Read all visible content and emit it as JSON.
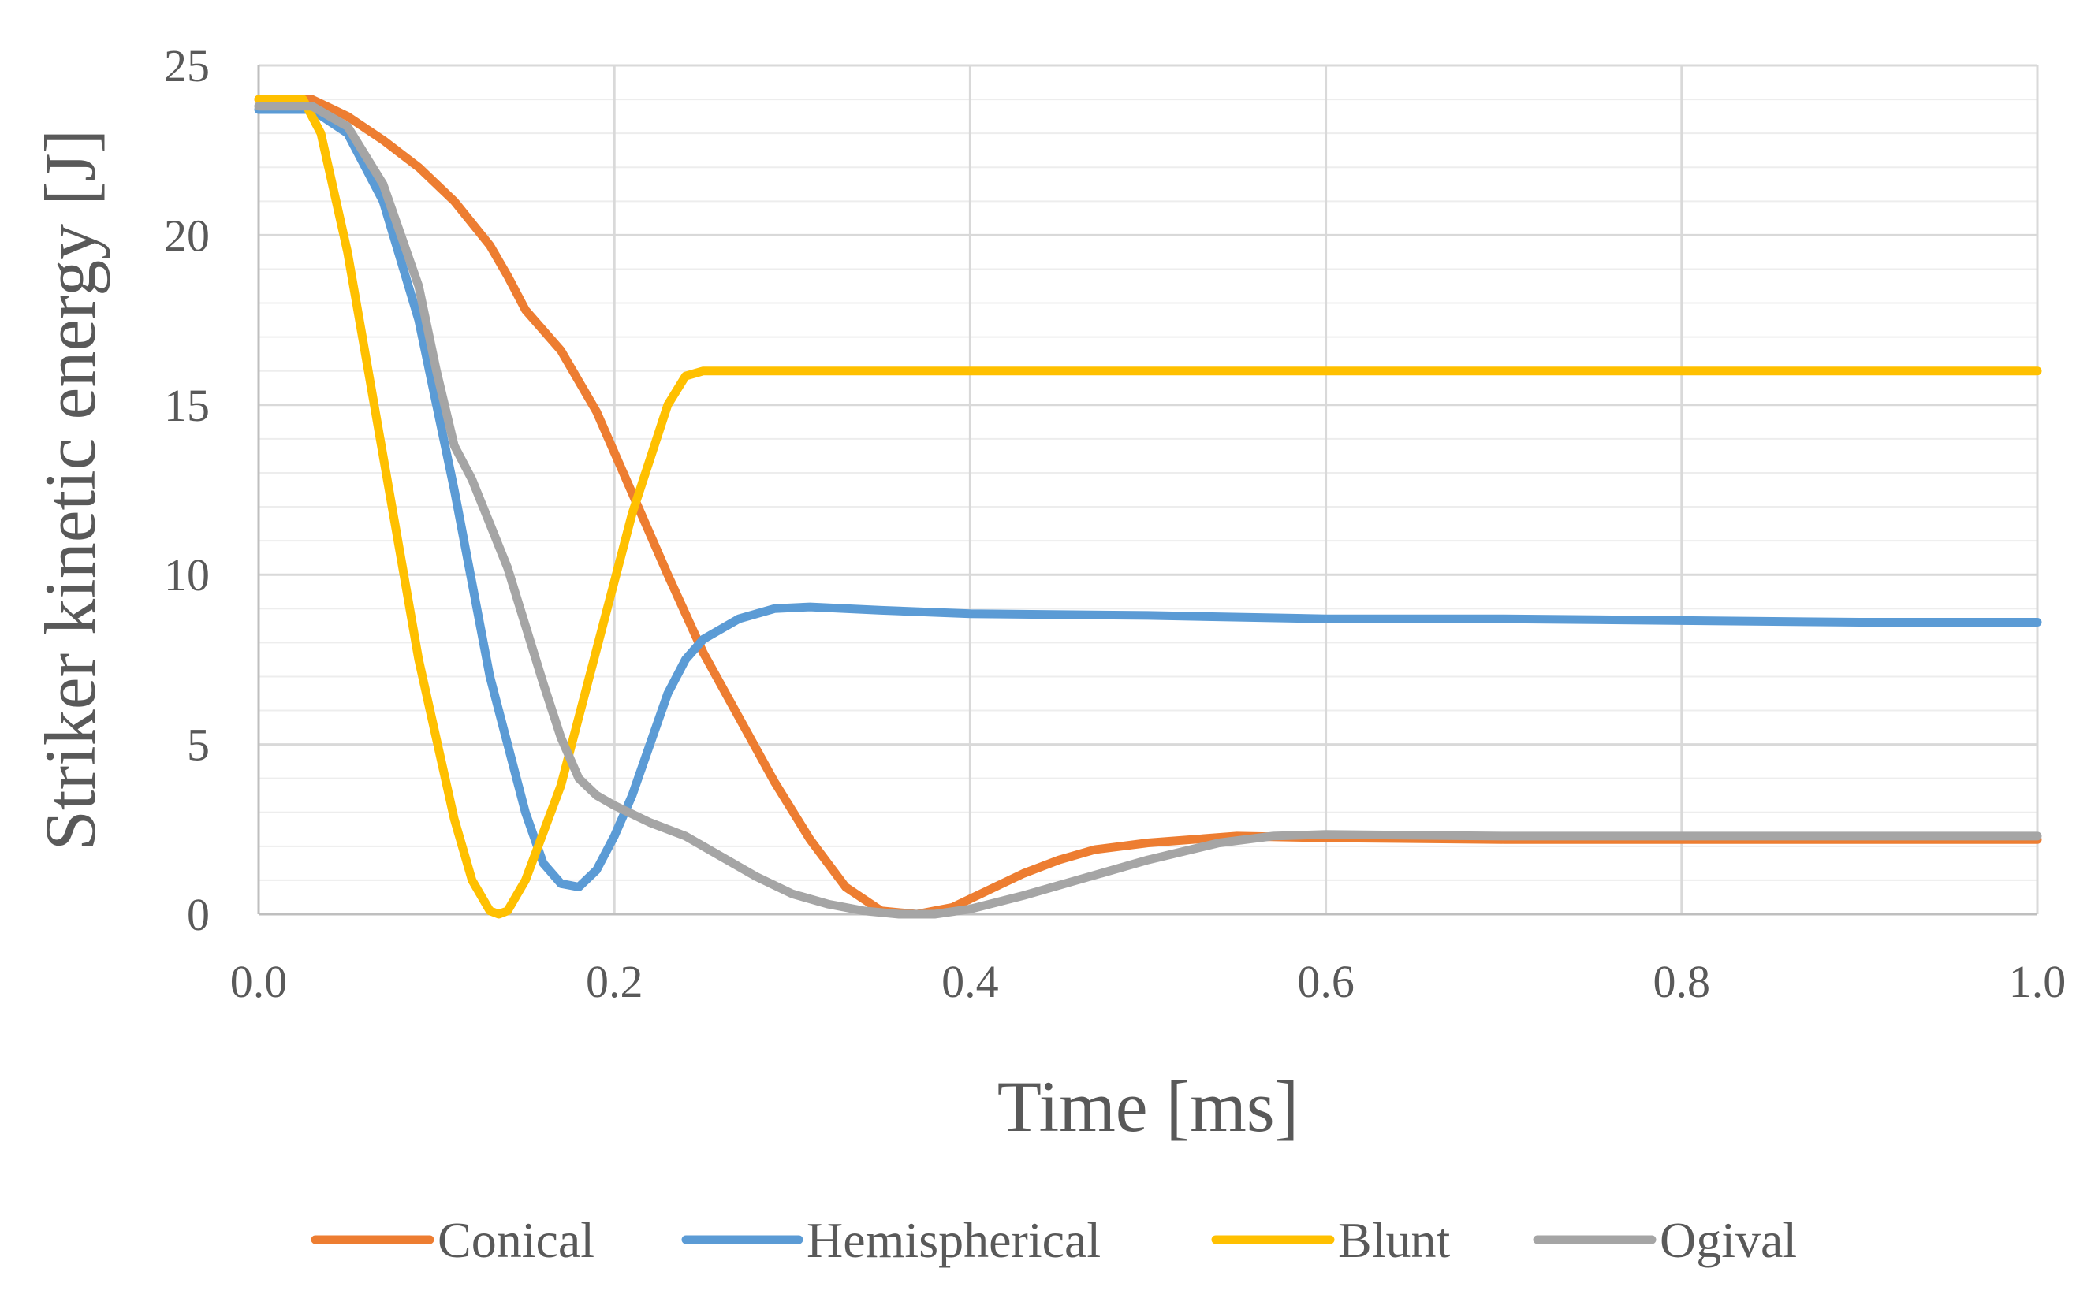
{
  "chart_data": {
    "type": "line",
    "title": "",
    "xlabel": "Time [ms]",
    "ylabel": "Striker kinetic energy [J]",
    "xlim": [
      0.0,
      1.0
    ],
    "ylim": [
      0,
      25
    ],
    "x_ticks": [
      "0.0",
      "0.2",
      "0.4",
      "0.6",
      "0.8",
      "1.0"
    ],
    "y_ticks": [
      "0",
      "5",
      "10",
      "15",
      "20",
      "25"
    ],
    "grid": true,
    "legend_position": "bottom",
    "series": [
      {
        "name": "Conical",
        "color": "#ED7D31",
        "points": [
          [
            0.0,
            24.0
          ],
          [
            0.03,
            24.0
          ],
          [
            0.05,
            23.5
          ],
          [
            0.07,
            22.8
          ],
          [
            0.09,
            22.0
          ],
          [
            0.11,
            21.0
          ],
          [
            0.13,
            19.7
          ],
          [
            0.14,
            18.8
          ],
          [
            0.15,
            17.8
          ],
          [
            0.17,
            16.6
          ],
          [
            0.19,
            14.8
          ],
          [
            0.21,
            12.4
          ],
          [
            0.23,
            10.0
          ],
          [
            0.25,
            7.7
          ],
          [
            0.27,
            5.8
          ],
          [
            0.29,
            3.9
          ],
          [
            0.31,
            2.2
          ],
          [
            0.33,
            0.8
          ],
          [
            0.35,
            0.1
          ],
          [
            0.37,
            0.0
          ],
          [
            0.39,
            0.2
          ],
          [
            0.41,
            0.7
          ],
          [
            0.43,
            1.2
          ],
          [
            0.45,
            1.6
          ],
          [
            0.47,
            1.9
          ],
          [
            0.5,
            2.1
          ],
          [
            0.55,
            2.3
          ],
          [
            0.6,
            2.25
          ],
          [
            0.7,
            2.2
          ],
          [
            0.8,
            2.2
          ],
          [
            0.9,
            2.2
          ],
          [
            1.0,
            2.2
          ]
        ]
      },
      {
        "name": "Hemispherical",
        "color": "#5B9BD5",
        "points": [
          [
            0.0,
            23.7
          ],
          [
            0.03,
            23.7
          ],
          [
            0.05,
            23.0
          ],
          [
            0.07,
            21.0
          ],
          [
            0.09,
            17.5
          ],
          [
            0.11,
            12.5
          ],
          [
            0.13,
            7.0
          ],
          [
            0.15,
            3.0
          ],
          [
            0.16,
            1.5
          ],
          [
            0.17,
            0.9
          ],
          [
            0.18,
            0.8
          ],
          [
            0.19,
            1.3
          ],
          [
            0.2,
            2.3
          ],
          [
            0.21,
            3.5
          ],
          [
            0.22,
            5.0
          ],
          [
            0.23,
            6.5
          ],
          [
            0.24,
            7.5
          ],
          [
            0.25,
            8.1
          ],
          [
            0.27,
            8.7
          ],
          [
            0.29,
            9.0
          ],
          [
            0.31,
            9.05
          ],
          [
            0.35,
            8.95
          ],
          [
            0.4,
            8.85
          ],
          [
            0.5,
            8.8
          ],
          [
            0.6,
            8.7
          ],
          [
            0.7,
            8.7
          ],
          [
            0.8,
            8.65
          ],
          [
            0.9,
            8.6
          ],
          [
            1.0,
            8.6
          ]
        ]
      },
      {
        "name": "Blunt",
        "color": "#FFC000",
        "points": [
          [
            0.0,
            24.0
          ],
          [
            0.025,
            24.0
          ],
          [
            0.035,
            23.0
          ],
          [
            0.05,
            19.5
          ],
          [
            0.07,
            13.5
          ],
          [
            0.09,
            7.5
          ],
          [
            0.11,
            2.8
          ],
          [
            0.12,
            1.0
          ],
          [
            0.13,
            0.1
          ],
          [
            0.135,
            0.0
          ],
          [
            0.14,
            0.1
          ],
          [
            0.15,
            1.0
          ],
          [
            0.17,
            3.8
          ],
          [
            0.19,
            7.8
          ],
          [
            0.21,
            11.8
          ],
          [
            0.23,
            15.0
          ],
          [
            0.24,
            15.85
          ],
          [
            0.25,
            16.0
          ],
          [
            0.3,
            16.0
          ],
          [
            0.5,
            16.0
          ],
          [
            0.7,
            16.0
          ],
          [
            0.9,
            16.0
          ],
          [
            1.0,
            16.0
          ]
        ]
      },
      {
        "name": "Ogival",
        "color": "#A5A5A5",
        "points": [
          [
            0.0,
            23.8
          ],
          [
            0.03,
            23.8
          ],
          [
            0.05,
            23.2
          ],
          [
            0.07,
            21.5
          ],
          [
            0.09,
            18.5
          ],
          [
            0.1,
            16.0
          ],
          [
            0.11,
            13.8
          ],
          [
            0.12,
            12.8
          ],
          [
            0.13,
            11.5
          ],
          [
            0.14,
            10.2
          ],
          [
            0.15,
            8.5
          ],
          [
            0.16,
            6.8
          ],
          [
            0.17,
            5.2
          ],
          [
            0.18,
            4.0
          ],
          [
            0.19,
            3.5
          ],
          [
            0.2,
            3.2
          ],
          [
            0.22,
            2.7
          ],
          [
            0.24,
            2.3
          ],
          [
            0.26,
            1.7
          ],
          [
            0.28,
            1.1
          ],
          [
            0.3,
            0.6
          ],
          [
            0.32,
            0.3
          ],
          [
            0.34,
            0.1
          ],
          [
            0.36,
            0.0
          ],
          [
            0.38,
            0.0
          ],
          [
            0.4,
            0.15
          ],
          [
            0.43,
            0.55
          ],
          [
            0.46,
            1.0
          ],
          [
            0.5,
            1.6
          ],
          [
            0.54,
            2.1
          ],
          [
            0.57,
            2.3
          ],
          [
            0.6,
            2.35
          ],
          [
            0.7,
            2.3
          ],
          [
            0.8,
            2.3
          ],
          [
            0.9,
            2.3
          ],
          [
            1.0,
            2.3
          ]
        ]
      }
    ]
  }
}
